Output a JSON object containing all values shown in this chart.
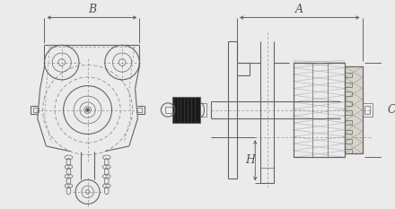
{
  "background_color": "#ebebeb",
  "line_color": "#646464",
  "dim_color": "#505050",
  "dash_color": "#909090",
  "fig_width": 4.4,
  "fig_height": 2.33,
  "dpi": 100,
  "label_A": "A",
  "label_B": "B",
  "label_C": "C",
  "label_H": "H",
  "label_fontsize": 9,
  "lw_main": 0.8,
  "lw_thin": 0.5,
  "lw_dim": 0.6
}
